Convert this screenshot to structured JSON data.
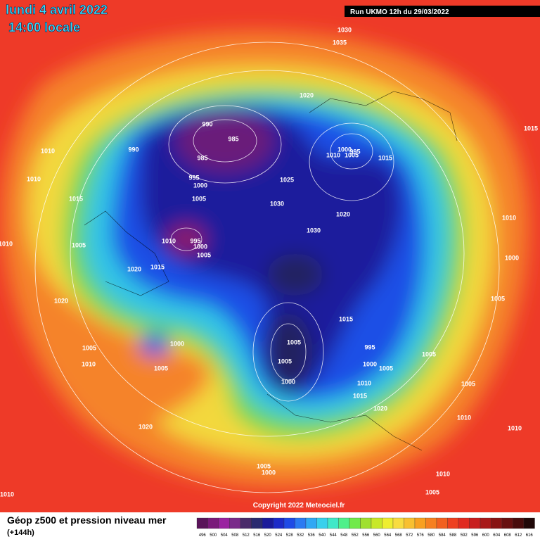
{
  "header": {
    "date": "lundi 4 avril 2022",
    "time": "14:00 locale",
    "run": "Run UKMO 12h du 29/03/2022"
  },
  "isobar_labels": [
    "990",
    "985",
    "985",
    "990",
    "995",
    "1000",
    "1005",
    "1010",
    "1010",
    "1015",
    "1010",
    "1005",
    "1010",
    "995",
    "1000",
    "1005",
    "1015",
    "1020",
    "1020",
    "1030",
    "1035",
    "1020",
    "1000",
    "1010",
    "1005",
    "995",
    "1015",
    "1025",
    "1030",
    "1020",
    "1030",
    "1010",
    "1000",
    "1005",
    "1015",
    "1005",
    "995",
    "1005",
    "1000",
    "1005",
    "1000",
    "1005",
    "1010",
    "1015",
    "1020",
    "1005",
    "1010",
    "1010",
    "1010",
    "1005",
    "1000",
    "1005",
    "1010",
    "1005",
    "1020",
    "1005",
    "1000",
    "1010",
    "1015"
  ],
  "copyright": "Copyright 2022 Meteociel.fr",
  "legend": {
    "title": "Géop z500 et pression niveau mer",
    "subtitle": "(+144h)",
    "scale": [
      "496",
      "500",
      "504",
      "508",
      "512",
      "516",
      "520",
      "524",
      "528",
      "532",
      "536",
      "540",
      "544",
      "548",
      "552",
      "556",
      "560",
      "564",
      "568",
      "572",
      "576",
      "580",
      "584",
      "588",
      "592",
      "596",
      "600",
      "604",
      "608",
      "612",
      "616"
    ],
    "colors": [
      "#5a145a",
      "#7a1a7a",
      "#9a22a0",
      "#7a2a8a",
      "#4a2a6a",
      "#2a2a70",
      "#1a1a9a",
      "#1c2ac8",
      "#1e4ae6",
      "#2a7af2",
      "#30a8f4",
      "#38d0ec",
      "#40e8c8",
      "#50f08a",
      "#70ea4a",
      "#a0e030",
      "#c8e828",
      "#eeee30",
      "#f8dc40",
      "#f8c030",
      "#f8a020",
      "#f68020",
      "#f26020",
      "#ee4020",
      "#e02a20",
      "#c81e1e",
      "#a81818",
      "#881414",
      "#681010",
      "#480c0c",
      "#200808"
    ]
  }
}
